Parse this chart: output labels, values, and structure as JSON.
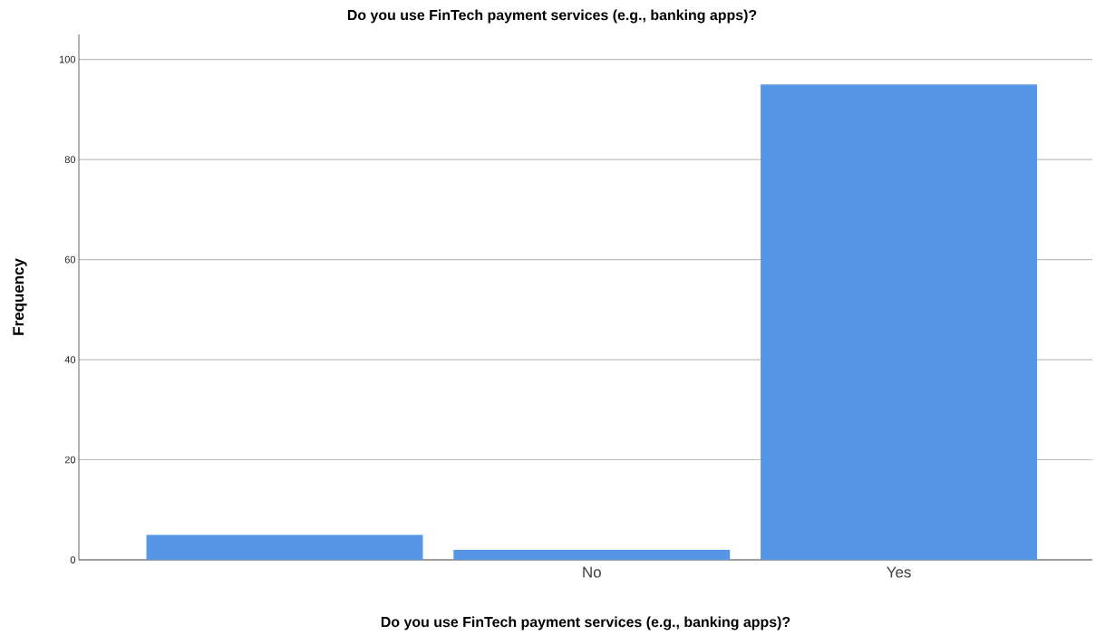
{
  "chart_data": {
    "type": "bar",
    "title": "Do you use FinTech payment services (e.g., banking apps)?",
    "xlabel": "Do you use FinTech payment services (e.g., banking apps)?",
    "ylabel": "Frequency",
    "categories": [
      null,
      "No",
      "Yes"
    ],
    "values": [
      5,
      2,
      95
    ],
    "color": "#5596e6",
    "ylim": [
      0,
      105
    ],
    "yticks": [
      0,
      20,
      40,
      60,
      80,
      100
    ],
    "grid": "y"
  }
}
